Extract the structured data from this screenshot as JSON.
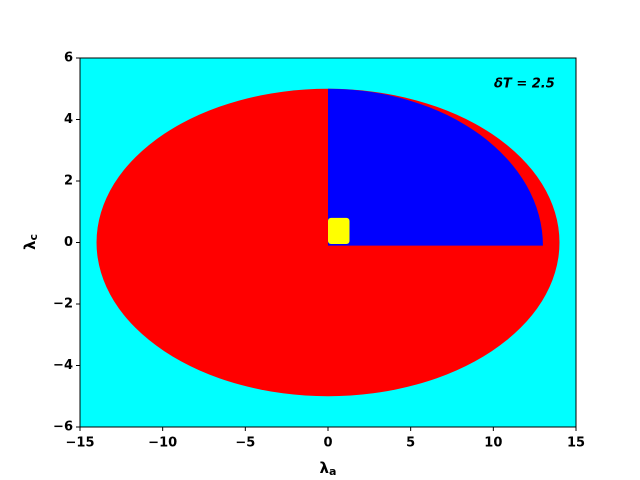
{
  "chart_data": {
    "type": "region",
    "annotation": "δT = 2.5",
    "xlabel": {
      "base": "λ",
      "sub": "a"
    },
    "ylabel": {
      "base": "λ",
      "sub": "c"
    },
    "background": "#00ffff",
    "xlim": [
      -15,
      15
    ],
    "ylim": [
      -6,
      6
    ],
    "xticks": [
      {
        "value": -15,
        "label": "−15"
      },
      {
        "value": -10,
        "label": "−10"
      },
      {
        "value": -5,
        "label": "−5"
      },
      0,
      5,
      10,
      15
    ],
    "yticks": [
      {
        "value": -6,
        "label": "−6"
      },
      {
        "value": -4,
        "label": "−4"
      },
      {
        "value": -2,
        "label": "−2"
      },
      0,
      2,
      4,
      6
    ],
    "regions": [
      {
        "shape": "ellipse",
        "color": "#ff0000",
        "cx": 0,
        "cy": 0,
        "rx": 14,
        "ry": 5
      },
      {
        "shape": "quarter-ellipse",
        "color": "#0000ff",
        "cx": 0,
        "cy": -0.1,
        "rx": 13,
        "ry": 5.1
      },
      {
        "shape": "rect",
        "color": "#ffff00",
        "x0": 0,
        "x1": 1.3,
        "y0": -0.05,
        "y1": 0.8
      }
    ]
  }
}
